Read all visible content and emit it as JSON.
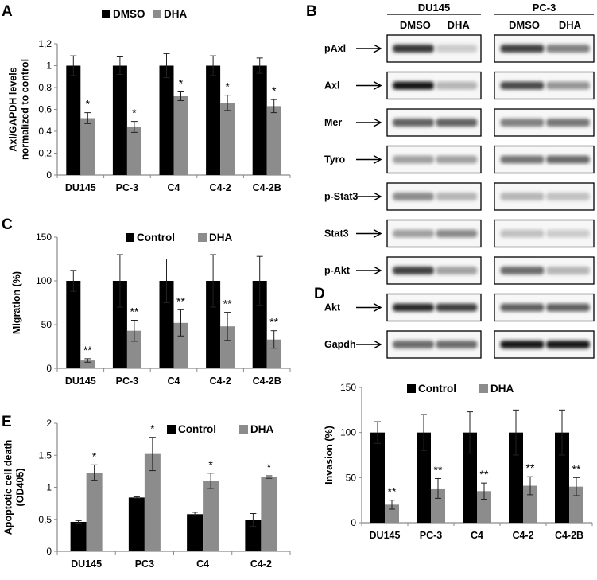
{
  "panels": {
    "A": "A",
    "B": "B",
    "C": "C",
    "D": "D",
    "E": "E"
  },
  "colors": {
    "dark": "#000000",
    "light": "#8c8c8c",
    "axis": "#8a8a8a"
  },
  "chart_data": [
    {
      "id": "A",
      "type": "bar",
      "ylabel": "Axl/GAPDH levels normalized to control",
      "ylabel_lines": [
        "Axl/GAPDH levels",
        "normalized to control"
      ],
      "categories": [
        "DU145",
        "PC-3",
        "C4",
        "C4-2",
        "C4-2B"
      ],
      "yticks": [
        "0",
        "0,2",
        "0,4",
        "0,6",
        "0,8",
        "1",
        "1,2"
      ],
      "ylim": [
        0,
        1.2
      ],
      "legend": "top",
      "grid": false,
      "series": [
        {
          "name": "DMSO",
          "color": "#000000",
          "values": [
            1.0,
            1.0,
            1.0,
            1.0,
            1.0
          ],
          "errors": [
            0.09,
            0.08,
            0.11,
            0.09,
            0.07
          ]
        },
        {
          "name": "DHA",
          "color": "#8c8c8c",
          "values": [
            0.52,
            0.44,
            0.72,
            0.66,
            0.63
          ],
          "errors": [
            0.05,
            0.05,
            0.04,
            0.07,
            0.06
          ]
        }
      ],
      "annotations": [
        {
          "category": 0,
          "series": 1,
          "text": "*"
        },
        {
          "category": 1,
          "series": 1,
          "text": "*"
        },
        {
          "category": 2,
          "series": 1,
          "text": "*"
        },
        {
          "category": 3,
          "series": 1,
          "text": "*"
        },
        {
          "category": 4,
          "series": 1,
          "text": "*"
        }
      ]
    },
    {
      "id": "C",
      "type": "bar",
      "ylabel": "Migration (%)",
      "ylabel_lines": [
        "Migration (%)"
      ],
      "categories": [
        "DU145",
        "PC-3",
        "C4",
        "C4-2",
        "C4-2B"
      ],
      "yticks": [
        "0",
        "50",
        "100",
        "150"
      ],
      "ylim": [
        0,
        150
      ],
      "legend": "top",
      "grid": false,
      "series": [
        {
          "name": "Control",
          "color": "#000000",
          "values": [
            100,
            100,
            100,
            100,
            100
          ],
          "errors": [
            12,
            30,
            25,
            30,
            28
          ]
        },
        {
          "name": "DHA",
          "color": "#8c8c8c",
          "values": [
            9,
            43,
            52,
            48,
            33
          ],
          "errors": [
            2,
            12,
            15,
            16,
            10
          ]
        }
      ],
      "annotations": [
        {
          "category": 0,
          "series": 1,
          "text": "**"
        },
        {
          "category": 1,
          "series": 1,
          "text": "**"
        },
        {
          "category": 2,
          "series": 1,
          "text": "**"
        },
        {
          "category": 3,
          "series": 1,
          "text": "**"
        },
        {
          "category": 4,
          "series": 1,
          "text": "**"
        }
      ]
    },
    {
      "id": "D",
      "type": "bar",
      "ylabel": "Invasion (%)",
      "ylabel_lines": [
        "Invasion (%)"
      ],
      "categories": [
        "DU145",
        "PC-3",
        "C4",
        "C4-2",
        "C4-2B"
      ],
      "yticks": [
        "0",
        "50",
        "100",
        "150"
      ],
      "ylim": [
        0,
        150
      ],
      "legend": "top",
      "grid": false,
      "series": [
        {
          "name": "Control",
          "color": "#000000",
          "values": [
            100,
            100,
            100,
            100,
            100
          ],
          "errors": [
            12,
            20,
            23,
            25,
            25
          ]
        },
        {
          "name": "DHA",
          "color": "#8c8c8c",
          "values": [
            20,
            38,
            35,
            41,
            40
          ],
          "errors": [
            5,
            11,
            9,
            10,
            10
          ]
        }
      ],
      "annotations": [
        {
          "category": 0,
          "series": 1,
          "text": "**"
        },
        {
          "category": 1,
          "series": 1,
          "text": "**"
        },
        {
          "category": 2,
          "series": 1,
          "text": "**"
        },
        {
          "category": 3,
          "series": 1,
          "text": "**"
        },
        {
          "category": 4,
          "series": 1,
          "text": "**"
        }
      ]
    },
    {
      "id": "E",
      "type": "bar",
      "ylabel": "Apoptotic cell death (OD405)",
      "ylabel_lines": [
        "Apoptotic cell death",
        "(OD405)"
      ],
      "categories": [
        "DU145",
        "PC3",
        "C4",
        "C4-2"
      ],
      "yticks": [
        "0",
        "0,5",
        "1",
        "1,5",
        "2"
      ],
      "ylim": [
        0,
        2
      ],
      "legend": "top",
      "grid": false,
      "series": [
        {
          "name": "Control",
          "color": "#000000",
          "values": [
            0.46,
            0.84,
            0.58,
            0.49
          ],
          "errors": [
            0.02,
            0.01,
            0.03,
            0.1
          ]
        },
        {
          "name": "DHA",
          "color": "#8c8c8c",
          "values": [
            1.23,
            1.52,
            1.1,
            1.16
          ],
          "errors": [
            0.12,
            0.26,
            0.12,
            0.02
          ]
        }
      ],
      "annotations": [
        {
          "category": 0,
          "series": 1,
          "text": "*"
        },
        {
          "category": 1,
          "series": 1,
          "text": "*"
        },
        {
          "category": 2,
          "series": 1,
          "text": "*"
        },
        {
          "category": 3,
          "series": 1,
          "text": "*"
        }
      ]
    }
  ],
  "blot": {
    "groups": [
      {
        "name": "DU145",
        "lanes": [
          "DMSO",
          "DHA"
        ]
      },
      {
        "name": "PC-3",
        "lanes": [
          "DMSO",
          "DHA"
        ]
      }
    ],
    "rows": [
      {
        "label": "pAxl",
        "bands": [
          [
            0.8,
            0.1
          ],
          [
            0.75,
            0.45
          ]
        ]
      },
      {
        "label": "Axl",
        "bands": [
          [
            0.95,
            0.2
          ],
          [
            0.7,
            0.35
          ]
        ]
      },
      {
        "label": "Mer",
        "bands": [
          [
            0.6,
            0.6
          ],
          [
            0.45,
            0.5
          ]
        ]
      },
      {
        "label": "Tyro",
        "bands": [
          [
            0.3,
            0.3
          ],
          [
            0.5,
            0.55
          ]
        ]
      },
      {
        "label": "p-Stat3",
        "bands": [
          [
            0.4,
            0.2
          ],
          [
            0.2,
            0.15
          ]
        ]
      },
      {
        "label": "Stat3",
        "bands": [
          [
            0.3,
            0.4
          ],
          [
            0.15,
            0.1
          ]
        ]
      },
      {
        "label": "p-Akt",
        "bands": [
          [
            0.75,
            0.3
          ],
          [
            0.55,
            0.2
          ]
        ]
      },
      {
        "label": "Akt",
        "bands": [
          [
            0.85,
            0.75
          ],
          [
            0.6,
            0.6
          ]
        ]
      },
      {
        "label": "Gapdh",
        "bands": [
          [
            0.55,
            0.55
          ],
          [
            0.95,
            0.95
          ]
        ]
      }
    ]
  }
}
